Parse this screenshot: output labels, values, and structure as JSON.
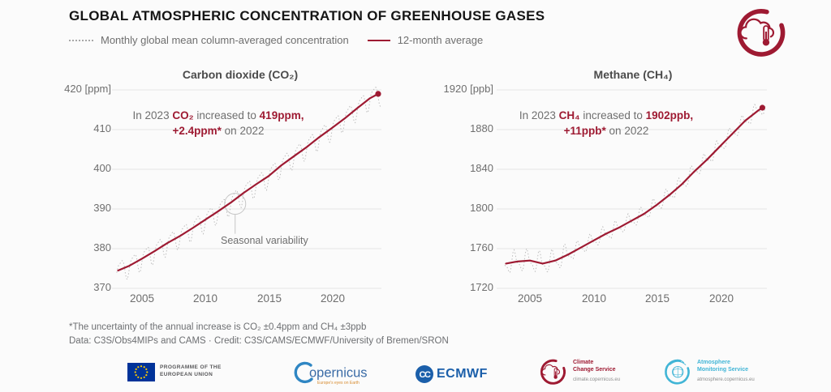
{
  "header": {
    "title": "GLOBAL ATMOSPHERIC CONCENTRATION OF GREENHOUSE GASES",
    "legend": [
      {
        "style": "dotted",
        "label": "Monthly global mean column-averaged concentration"
      },
      {
        "style": "solid",
        "label": "12-month average"
      }
    ]
  },
  "colors": {
    "accent_red": "#9e1a32",
    "monthly_dotted_gray": "#bdbdbd",
    "grid_gray": "#e6e6e6",
    "text_gray": "#6f6f6f",
    "cams_cyan": "#41b5d6",
    "ecmwf_blue": "#1b5faa",
    "eu_flag_blue": "#003399",
    "eu_star_yellow": "#ffcc00",
    "copernicus_blue": "#3a6ba6",
    "copernicus_orange": "#d78b2f",
    "background": "#fbfbfb"
  },
  "chart_data": [
    {
      "type": "line",
      "title": "Carbon dioxide (CO₂)",
      "unit": "ppm",
      "xlim": [
        2003,
        2024
      ],
      "ylim": [
        370,
        420
      ],
      "grid": "horizontal",
      "legend_position": "top-of-page",
      "y_ticks": [
        420,
        410,
        400,
        390,
        380,
        370
      ],
      "y_tick_labels": [
        "420 [ppm]",
        "410",
        "400",
        "390",
        "380",
        "370"
      ],
      "x_ticks": [
        2005,
        2010,
        2015,
        2020
      ],
      "x_tick_labels": [
        "2005",
        "2010",
        "2015",
        "2020"
      ],
      "annotation": {
        "pre": "In 2023",
        "gas": "CO₂",
        "mid": "increased to",
        "value": "419ppm,",
        "delta": "+2.4ppm*",
        "post": "on 2022"
      },
      "seasonal_label": "Seasonal variability",
      "seasonal_marker": {
        "x": 2012.35,
        "y": 391.3
      },
      "end_dot": {
        "x": 2023.65,
        "y": 419
      },
      "series": [
        {
          "name": "12-month average",
          "style": "solid",
          "points": [
            [
              2003.1,
              374.5
            ],
            [
              2004,
              375.7
            ],
            [
              2005,
              377.5
            ],
            [
              2006,
              379.4
            ],
            [
              2007,
              381.4
            ],
            [
              2008,
              383.2
            ],
            [
              2009,
              385.2
            ],
            [
              2010,
              387.3
            ],
            [
              2011,
              389.4
            ],
            [
              2012,
              391.6
            ],
            [
              2013,
              394.0
            ],
            [
              2014,
              396.2
            ],
            [
              2015,
              398.3
            ],
            [
              2016,
              401.0
            ],
            [
              2017,
              403.3
            ],
            [
              2018,
              405.6
            ],
            [
              2019,
              408.1
            ],
            [
              2020,
              410.4
            ],
            [
              2021,
              412.8
            ],
            [
              2022,
              415.4
            ],
            [
              2023,
              417.9
            ],
            [
              2023.65,
              419.0
            ]
          ]
        },
        {
          "name": "Monthly global mean column-averaged concentration",
          "style": "dotted",
          "derived": {
            "base": "12-month average",
            "amplitude": 2.5,
            "phase": 0.33,
            "amplitude2": 0.8,
            "phase2": 0.05,
            "start": 2003.0,
            "end": 2023.9
          }
        }
      ]
    },
    {
      "type": "line",
      "title": "Methane (CH₄)",
      "unit": "ppb",
      "xlim": [
        2003,
        2024
      ],
      "ylim": [
        1720,
        1920
      ],
      "grid": "horizontal",
      "legend_position": "top-of-page",
      "y_ticks": [
        1920,
        1880,
        1840,
        1800,
        1760,
        1720
      ],
      "y_tick_labels": [
        "1920 [ppb]",
        "1880",
        "1840",
        "1800",
        "1760",
        "1720"
      ],
      "x_ticks": [
        2005,
        2010,
        2015,
        2020
      ],
      "x_tick_labels": [
        "2005",
        "2010",
        "2015",
        "2020"
      ],
      "annotation": {
        "pre": "In 2023",
        "gas": "CH₄",
        "mid": "increased to",
        "value": "1902ppb,",
        "delta": "+11ppb*",
        "post": "on 2022"
      },
      "end_dot": {
        "x": 2023.35,
        "y": 1902
      },
      "series": [
        {
          "name": "12-month average",
          "style": "solid",
          "points": [
            [
              2003.1,
              1745
            ],
            [
              2004,
              1747
            ],
            [
              2005,
              1748
            ],
            [
              2006,
              1745
            ],
            [
              2007,
              1748
            ],
            [
              2008,
              1754
            ],
            [
              2009,
              1761
            ],
            [
              2010,
              1768
            ],
            [
              2011,
              1775
            ],
            [
              2012,
              1781
            ],
            [
              2013,
              1788
            ],
            [
              2014,
              1795
            ],
            [
              2015,
              1804
            ],
            [
              2016,
              1814
            ],
            [
              2017,
              1825
            ],
            [
              2018,
              1838
            ],
            [
              2019,
              1850
            ],
            [
              2020,
              1863
            ],
            [
              2021,
              1876
            ],
            [
              2022,
              1889
            ],
            [
              2023,
              1899
            ],
            [
              2023.35,
              1902
            ]
          ]
        },
        {
          "name": "Monthly global mean column-averaged concentration",
          "style": "dotted",
          "derived": {
            "base": "12-month average",
            "amplitude": 6.5,
            "phase": 0.78,
            "amplitude2": 3.0,
            "phase2": 0.2,
            "early_until": 2008,
            "early_factor": 1.4,
            "start": 2003.0,
            "end": 2023.6
          }
        }
      ]
    }
  ],
  "footnotes": {
    "line1": "*The uncertainty of the annual increase is CO₂ ±0.4ppm and CH₄ ±3ppb",
    "line2": "Data: C3S/Obs4MIPs and CAMS · Credit: C3S/CAMS/ECMWF/University of Bremen/SRON"
  },
  "logos": {
    "eu": {
      "line1": "PROGRAMME OF THE",
      "line2": "EUROPEAN UNION"
    },
    "copernicus": {
      "wordmark": "opernicus",
      "tagline": "Europe's eyes on Earth"
    },
    "ecmwf": {
      "wordmark": "ECMWF"
    },
    "c3s": {
      "line1": "Climate",
      "line2": "Change Service",
      "url": "climate.copernicus.eu"
    },
    "cams": {
      "line1": "Atmosphere",
      "line2": "Monitoring Service",
      "url": "atmosphere.copernicus.eu"
    }
  }
}
